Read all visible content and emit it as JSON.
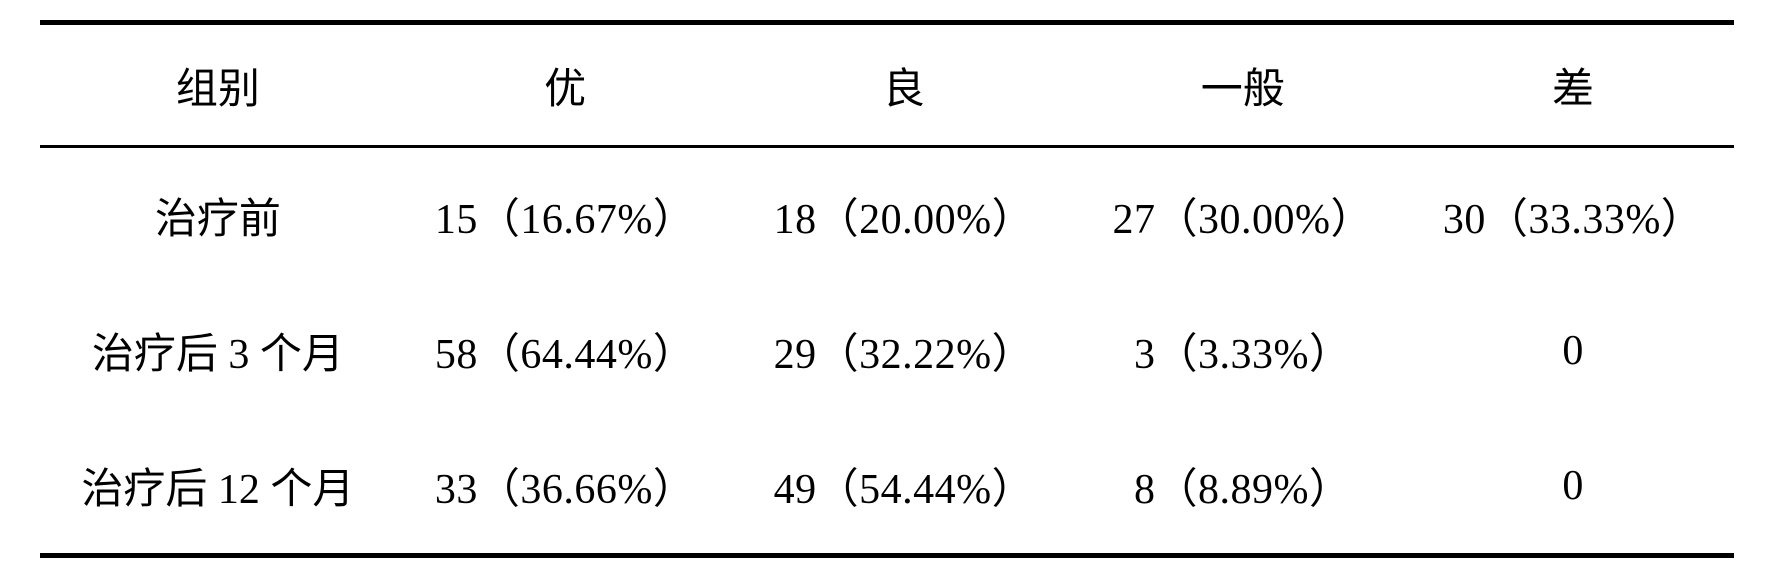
{
  "table": {
    "type": "table",
    "columns": [
      "组别",
      "优",
      "良",
      "一般",
      "差"
    ],
    "rows": [
      [
        "治疗前",
        "15（16.67%）",
        "18（20.00%）",
        "27（30.00%）",
        "30（33.33%）"
      ],
      [
        "治疗后 3 个月",
        "58（64.44%）",
        "29（32.22%）",
        "3（3.33%）",
        "0"
      ],
      [
        "治疗后 12 个月",
        "33（36.66%）",
        "49（54.44%）",
        "8（8.89%）",
        "0"
      ]
    ],
    "header_fontsize": 42,
    "body_fontsize": 42,
    "font_family": "SimSun",
    "border_top_width": 5,
    "header_divider_width": 3,
    "border_bottom_width": 5,
    "background_color": "#ffffff",
    "text_color": "#000000",
    "column_alignments": [
      "center",
      "center",
      "center",
      "center",
      "center"
    ]
  }
}
